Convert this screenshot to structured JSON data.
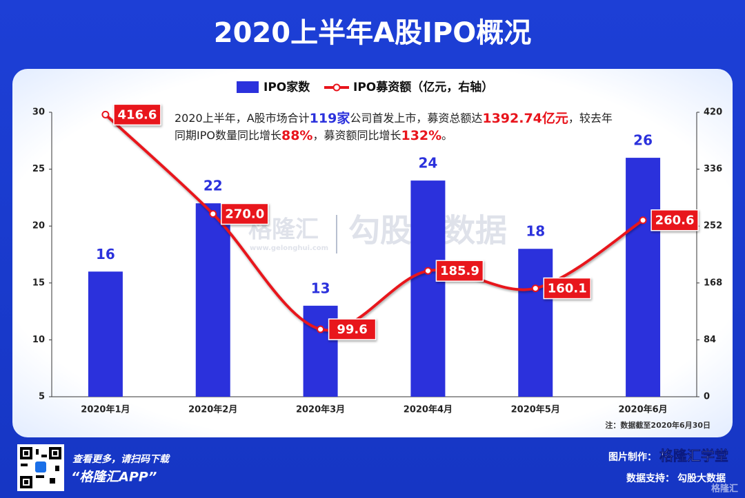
{
  "chart_data": {
    "type": "bar-line",
    "title": "2020上半年A股IPO概况",
    "categories": [
      "2020年1月",
      "2020年2月",
      "2020年3月",
      "2020年4月",
      "2020年5月",
      "2020年6月"
    ],
    "series": [
      {
        "name": "IPO家数",
        "color": "#2b31dc",
        "values": [
          16,
          22,
          13,
          24,
          18,
          26
        ]
      },
      {
        "name": "IPO募资额（亿元，右轴）",
        "color": "#e8141c",
        "axis": "y2",
        "values": [
          416.6,
          270.0,
          99.6,
          185.9,
          160.1,
          260.6
        ],
        "value_labels": [
          "416.6",
          "270.0",
          "99.6",
          "185.9",
          "160.1",
          "260.6"
        ]
      }
    ],
    "ylim": [
      5,
      30
    ],
    "yticks": [
      5,
      10,
      15,
      20,
      25,
      30
    ],
    "y2lim": [
      0,
      420
    ],
    "y2ticks": [
      0,
      84,
      168,
      252,
      336,
      420
    ],
    "grid": false,
    "annotation": [
      [
        {
          "text": "2020上半年，A股市场合计"
        },
        {
          "text": "119家",
          "color": "#2b31dc"
        },
        {
          "text": "公司首发上市，募资总额达"
        },
        {
          "text": "1392.74亿元",
          "color": "#e8141c"
        },
        {
          "text": "，较去年"
        }
      ],
      [
        {
          "text": "同期IPO数量同比增长"
        },
        {
          "text": "88%",
          "color": "#e8141c"
        },
        {
          "text": "，募资额同比增长"
        },
        {
          "text": "132%",
          "color": "#e8141c"
        },
        {
          "text": "。"
        }
      ]
    ],
    "note": "注：数据截至2020年6月30日",
    "watermark": {
      "brand": "格隆汇",
      "url": "www.gelonghui.com",
      "partner": "勾股大数据"
    }
  },
  "footer": {
    "scan": "查看更多，请扫码下载",
    "app": "“格隆汇APP”",
    "made_by_label": "图片制作：",
    "made_by": "格隆汇学堂",
    "data_by_label": "数据支持：",
    "data_by": "勾股大数据",
    "logo": "格隆汇"
  }
}
